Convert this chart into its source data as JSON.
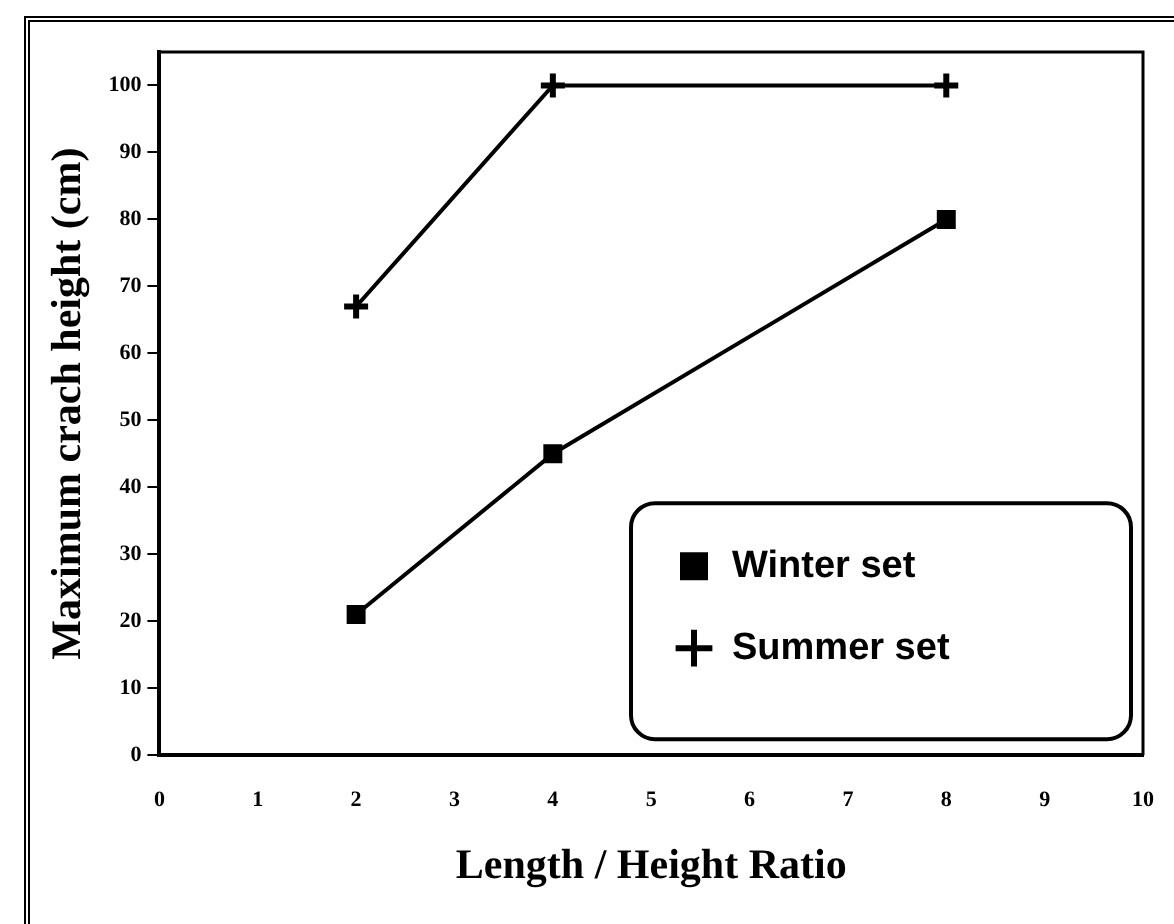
{
  "chart_data": {
    "type": "line",
    "xlabel": "Length / Height Ratio",
    "ylabel": "Maximum crach height (cm)",
    "x": [
      2,
      4,
      8
    ],
    "series": [
      {
        "name": "Winter set",
        "color": "#000000",
        "marker": "square",
        "values": [
          21,
          45,
          80
        ]
      },
      {
        "name": "Summer set",
        "color": "#000000",
        "marker": "cross",
        "values": [
          67,
          100,
          100
        ]
      }
    ],
    "xlim": [
      0,
      10
    ],
    "xticks": [
      0,
      1,
      2,
      3,
      4,
      5,
      6,
      7,
      8,
      9,
      10
    ],
    "ylim": [
      0,
      105
    ],
    "yticks": [
      0,
      10,
      20,
      30,
      40,
      50,
      60,
      70,
      80,
      90,
      100
    ],
    "grid": false,
    "legend": "bottom right",
    "line_style": "solid"
  }
}
